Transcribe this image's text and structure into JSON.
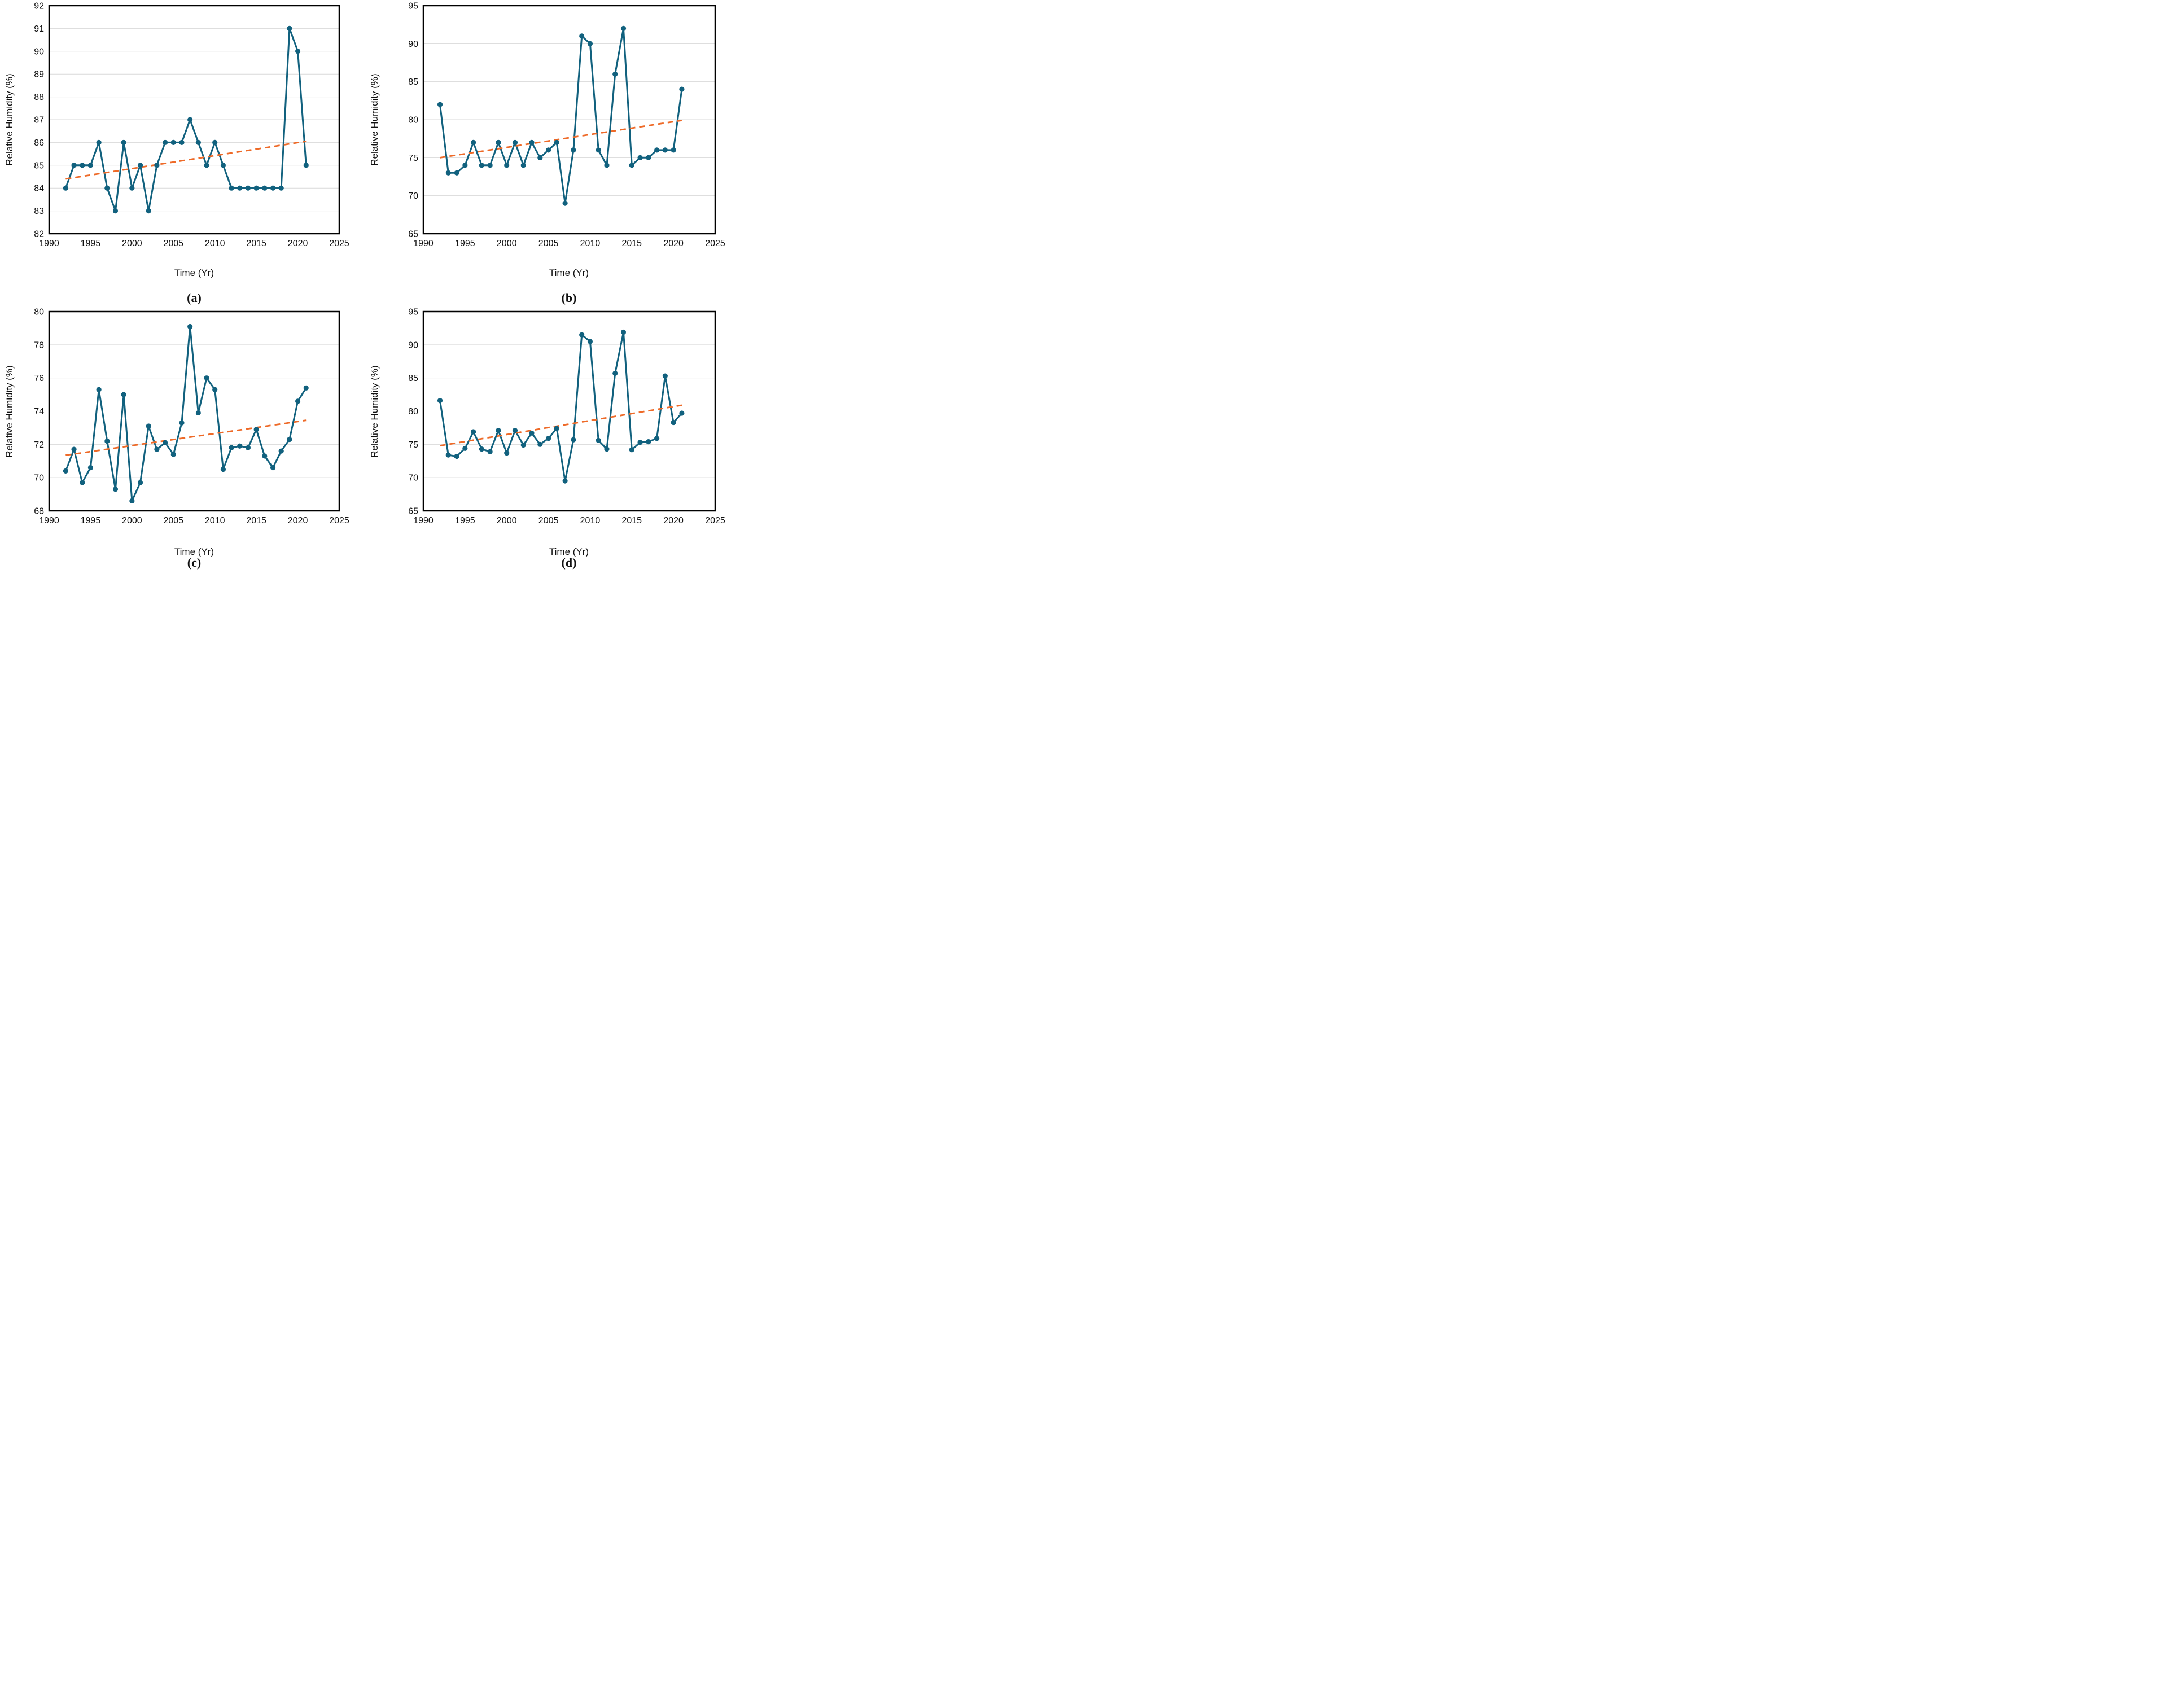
{
  "figure": {
    "xlabel": "Time (Yr)",
    "ylabel": "Relative Humidity (%)",
    "x_ticks": [
      1990,
      1995,
      2000,
      2005,
      2010,
      2015,
      2020,
      2025
    ],
    "colors": {
      "series_line": "#11617E",
      "marker": "#11617E",
      "trend_line": "#EE6A28",
      "gridline": "#D9D9D9",
      "axis_border": "#000000",
      "text": "#111111"
    }
  },
  "chart_data": [
    {
      "type": "line",
      "panel": "(a)",
      "title": "",
      "xlabel": "Time (Yr)",
      "ylabel": "Relative Humidity (%)",
      "xlim": [
        1990,
        2025
      ],
      "xticks": [
        1990,
        1995,
        2000,
        2005,
        2010,
        2015,
        2020,
        2025
      ],
      "ylim": [
        82,
        92
      ],
      "ytick_step": 1,
      "grid": "horizontal",
      "legend": "none",
      "x": [
        1992,
        1993,
        1994,
        1995,
        1996,
        1997,
        1998,
        1999,
        2000,
        2001,
        2002,
        2003,
        2004,
        2005,
        2006,
        2007,
        2008,
        2009,
        2010,
        2011,
        2012,
        2013,
        2014,
        2015,
        2016,
        2017,
        2018,
        2019,
        2020,
        2021
      ],
      "series": [
        {
          "name": "relative-humidity",
          "values": [
            84,
            85,
            85,
            85,
            86,
            84,
            83,
            86,
            84,
            85,
            83,
            85,
            86,
            86,
            86,
            87,
            86,
            85,
            86,
            85,
            84,
            84,
            84,
            84,
            84,
            84,
            84,
            91,
            90,
            85
          ]
        }
      ],
      "trend": {
        "name": "linear-trend",
        "x": [
          1992,
          2021
        ],
        "y": [
          84.4,
          86.05
        ]
      }
    },
    {
      "type": "line",
      "panel": "(b)",
      "title": "",
      "xlabel": "Time (Yr)",
      "ylabel": "Relative Humidity (%)",
      "xlim": [
        1990,
        2025
      ],
      "xticks": [
        1990,
        1995,
        2000,
        2005,
        2010,
        2015,
        2020,
        2025
      ],
      "ylim": [
        65,
        95
      ],
      "ytick_step": 5,
      "grid": "horizontal",
      "legend": "none",
      "x": [
        1992,
        1993,
        1994,
        1995,
        1996,
        1997,
        1998,
        1999,
        2000,
        2001,
        2002,
        2003,
        2004,
        2005,
        2006,
        2007,
        2008,
        2009,
        2010,
        2011,
        2012,
        2013,
        2014,
        2015,
        2016,
        2017,
        2018,
        2019,
        2020,
        2021
      ],
      "series": [
        {
          "name": "relative-humidity",
          "values": [
            82,
            73,
            73,
            74,
            77,
            74,
            74,
            77,
            74,
            77,
            74,
            77,
            75,
            76,
            77,
            69,
            76,
            91,
            90,
            76,
            74,
            86,
            92,
            74,
            75,
            75,
            76,
            76,
            76,
            84
          ]
        }
      ],
      "trend": {
        "name": "linear-trend",
        "x": [
          1992,
          2021
        ],
        "y": [
          75.0,
          79.9
        ]
      }
    },
    {
      "type": "line",
      "panel": "(c)",
      "title": "",
      "xlabel": "Time (Yr)",
      "ylabel": "Relative Humidity (%)",
      "xlim": [
        1990,
        2025
      ],
      "xticks": [
        1990,
        1995,
        2000,
        2005,
        2010,
        2015,
        2020,
        2025
      ],
      "ylim": [
        68,
        80
      ],
      "ytick_step": 2,
      "grid": "horizontal",
      "legend": "none",
      "x": [
        1992,
        1993,
        1994,
        1995,
        1996,
        1997,
        1998,
        1999,
        2000,
        2001,
        2002,
        2003,
        2004,
        2005,
        2006,
        2007,
        2008,
        2009,
        2010,
        2011,
        2012,
        2013,
        2014,
        2015,
        2016,
        2017,
        2018,
        2019,
        2020,
        2021
      ],
      "series": [
        {
          "name": "relative-humidity",
          "values": [
            70.4,
            71.7,
            69.7,
            70.6,
            75.3,
            72.2,
            69.3,
            75.0,
            68.6,
            69.7,
            73.1,
            71.7,
            72.1,
            71.4,
            73.3,
            79.1,
            73.9,
            76.0,
            75.3,
            70.5,
            71.8,
            71.9,
            71.8,
            72.9,
            71.3,
            70.6,
            71.6,
            72.3,
            74.6,
            75.4
          ]
        }
      ],
      "trend": {
        "name": "linear-trend",
        "x": [
          1992,
          2021
        ],
        "y": [
          71.35,
          73.45
        ]
      }
    },
    {
      "type": "line",
      "panel": "(d)",
      "title": "",
      "xlabel": "Time (Yr)",
      "ylabel": "Relative Humidity (%)",
      "xlim": [
        1990,
        2025
      ],
      "xticks": [
        1990,
        1995,
        2000,
        2005,
        2010,
        2015,
        2020,
        2025
      ],
      "ylim": [
        65,
        95
      ],
      "ytick_step": 5,
      "grid": "horizontal",
      "legend": "none",
      "x": [
        1992,
        1993,
        1994,
        1995,
        1996,
        1997,
        1998,
        1999,
        2000,
        2001,
        2002,
        2003,
        2004,
        2005,
        2006,
        2007,
        2008,
        2009,
        2010,
        2011,
        2012,
        2013,
        2014,
        2015,
        2016,
        2017,
        2018,
        2019,
        2020,
        2021
      ],
      "series": [
        {
          "name": "relative-humidity",
          "values": [
            81.6,
            73.4,
            73.2,
            74.4,
            76.9,
            74.3,
            73.9,
            77.1,
            73.7,
            77.1,
            74.9,
            76.7,
            75.0,
            75.9,
            77.4,
            69.5,
            75.7,
            91.5,
            90.5,
            75.6,
            74.3,
            85.7,
            91.9,
            74.2,
            75.3,
            75.4,
            75.9,
            85.3,
            78.3,
            79.7
          ]
        }
      ],
      "trend": {
        "name": "linear-trend",
        "x": [
          1992,
          2021
        ],
        "y": [
          74.8,
          80.9
        ]
      }
    }
  ]
}
